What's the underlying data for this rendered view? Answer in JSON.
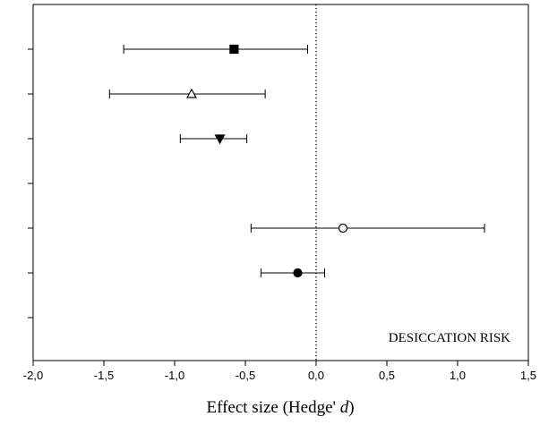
{
  "chart_data": {
    "type": "scatter",
    "title": "",
    "xlabel": "Effect size (Hedge' d)",
    "xlabel_main": "Effect size (Hedge' ",
    "xlabel_var": "d",
    "xlabel_close": ")",
    "ylabel": "",
    "xlim": [
      -2.0,
      1.5
    ],
    "x_ticks": [
      -2.0,
      -1.5,
      -1.0,
      -0.5,
      0.0,
      0.5,
      1.0,
      1.5
    ],
    "x_tick_labels": [
      "-2,0",
      "-1,5",
      "-1,0",
      "-0,5",
      "0,0",
      "0,5",
      "1,0",
      "1,5"
    ],
    "y_tick_count": 7,
    "reference_line_x": 0.0,
    "reference_line_style": "dotted",
    "grid": false,
    "annotation": "DESICCATION RISK",
    "annotation_position": "bottom-right",
    "points": [
      {
        "row": 1,
        "x": -0.58,
        "ci_low": -1.36,
        "ci_high": -0.06,
        "marker": "square",
        "filled": true
      },
      {
        "row": 2,
        "x": -0.88,
        "ci_low": -1.46,
        "ci_high": -0.36,
        "marker": "triangle-up",
        "filled": false
      },
      {
        "row": 3,
        "x": -0.68,
        "ci_low": -0.96,
        "ci_high": -0.49,
        "marker": "triangle-down",
        "filled": true
      },
      {
        "row": 5,
        "x": 0.19,
        "ci_low": -0.46,
        "ci_high": 1.19,
        "marker": "circle",
        "filled": false
      },
      {
        "row": 6,
        "x": -0.13,
        "ci_low": -0.39,
        "ci_high": 0.06,
        "marker": "circle",
        "filled": true
      }
    ],
    "colors": {
      "stroke": "#000000",
      "fill": "#000000",
      "background": "#ffffff"
    }
  }
}
